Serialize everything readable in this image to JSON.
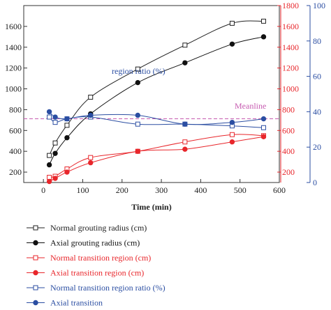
{
  "chart_data": {
    "type": "line",
    "xlabel": "Time (min)",
    "x_ticks": [
      0,
      100,
      200,
      300,
      400,
      500,
      600
    ],
    "xlim": [
      -50,
      600
    ],
    "left_axis": {
      "ylim": [
        100,
        1800
      ],
      "ticks": [
        200,
        400,
        600,
        800,
        1000,
        1200,
        1400,
        1600
      ],
      "color": "#222222"
    },
    "right_axis_1": {
      "ylim": [
        100,
        1800
      ],
      "ticks": [
        200,
        400,
        600,
        800,
        1000,
        1200,
        1400,
        1600,
        1800
      ],
      "color": "#e8262b"
    },
    "right_axis_2": {
      "ylim": [
        0,
        100
      ],
      "ticks": [
        0,
        20,
        40,
        60,
        80,
        100
      ],
      "color": "#2b4ea2"
    },
    "annotations": {
      "ratio": "region ratio (%)",
      "meanline": "Meanline"
    },
    "meanline": {
      "value": 36,
      "axis": "right_axis_2",
      "color": "#c65bb0"
    },
    "grid": false,
    "legend_position": "bottom",
    "series": [
      {
        "name": "Normal grouting radius (cm)",
        "axis": "left_axis",
        "color": "#222222",
        "marker": "square-open",
        "x": [
          15,
          30,
          60,
          120,
          240,
          360,
          480,
          560
        ],
        "y": [
          360,
          480,
          650,
          920,
          1190,
          1420,
          1630,
          1650
        ]
      },
      {
        "name": "Axial grouting radius (cm)",
        "axis": "left_axis",
        "color": "#111111",
        "marker": "circle-filled",
        "x": [
          15,
          30,
          60,
          120,
          240,
          360,
          480,
          560
        ],
        "y": [
          270,
          380,
          530,
          760,
          1060,
          1250,
          1430,
          1500
        ]
      },
      {
        "name": "Normal transition region (cm)",
        "axis": "right_axis_1",
        "color": "#e8262b",
        "marker": "square-open",
        "x": [
          15,
          30,
          60,
          120,
          240,
          360,
          480,
          560
        ],
        "y": [
          150,
          160,
          230,
          340,
          400,
          490,
          560,
          550
        ]
      },
      {
        "name": "Axial transition region (cm)",
        "axis": "right_axis_1",
        "color": "#e8262b",
        "marker": "circle-filled",
        "x": [
          15,
          30,
          60,
          120,
          240,
          360,
          480,
          560
        ],
        "y": [
          110,
          140,
          200,
          290,
          400,
          420,
          490,
          540
        ]
      },
      {
        "name": "Normal transition region ratio (%)",
        "axis": "right_axis_2",
        "color": "#2b4ea2",
        "marker": "square-open",
        "x": [
          15,
          30,
          60,
          120,
          240,
          360,
          480,
          560
        ],
        "y": [
          37,
          34,
          36,
          37,
          33,
          33,
          32,
          31
        ]
      },
      {
        "name": "Axial transition",
        "axis": "right_axis_2",
        "color": "#2b4ea2",
        "marker": "circle-filled",
        "x": [
          15,
          30,
          60,
          120,
          240,
          360,
          480,
          560
        ],
        "y": [
          40,
          37,
          36,
          38,
          38,
          33,
          34,
          36
        ]
      }
    ]
  }
}
